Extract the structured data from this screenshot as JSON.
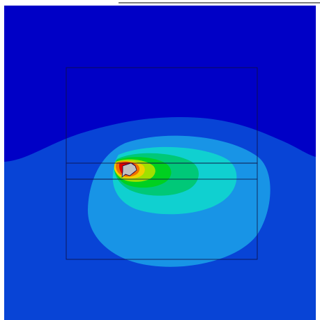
{
  "colors": {
    "background": "#ffffff",
    "band_lowest": "#0000c6",
    "band_low": "#0844d6",
    "band_mid_low": "#1894e6",
    "band_mid": "#10d0d0",
    "band_mid_high": "#00c878",
    "band_green": "#00d020",
    "band_yellow_green": "#a0e000",
    "band_yellow": "#f0d000",
    "band_orange": "#f07000",
    "band_red": "#e00000",
    "cutout": "#c0c0c0",
    "outline": "#101040",
    "top_border": "#000000"
  },
  "icons": {
    "cutout": "irregular-polygon-icon"
  }
}
